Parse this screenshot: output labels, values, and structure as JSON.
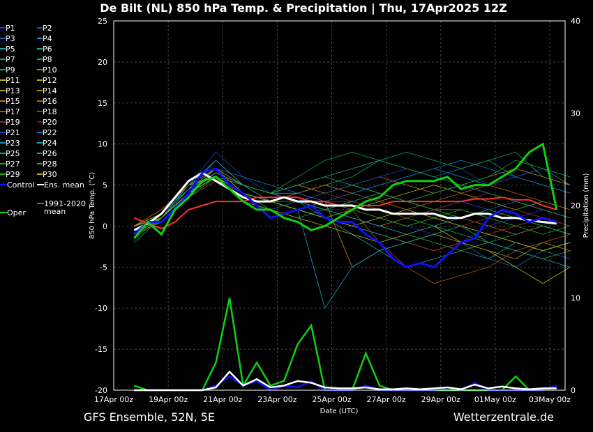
{
  "chart_data": {
    "type": "line",
    "title": "De Bilt  (NL)  850 hPa Temp. & Precipitation | Thu, 17Apr2025 12Z",
    "xlabel": "Date (UTC)",
    "ylabel": "850 hPa Temp. (°C)",
    "ylabel_right": "Precipitation (mm)",
    "ylim": [
      -20,
      25
    ],
    "ylim_right": [
      0,
      40
    ],
    "yticks": [
      25,
      20,
      15,
      10,
      5,
      0,
      -5,
      -10,
      -15,
      -20
    ],
    "yticks_right": [
      40,
      30,
      20,
      10,
      0
    ],
    "xlim_hours": [
      0,
      398
    ],
    "xticks": [
      {
        "label": "17Apr 00z",
        "h": 0
      },
      {
        "label": "19Apr 00z",
        "h": 48
      },
      {
        "label": "21Apr 00z",
        "h": 96
      },
      {
        "label": "23Apr 00z",
        "h": 144
      },
      {
        "label": "25Apr 00z",
        "h": 192
      },
      {
        "label": "27Apr 00z",
        "h": 240
      },
      {
        "label": "29Apr 00z",
        "h": 288
      },
      {
        "label": "01May 00z",
        "h": 336
      },
      {
        "label": "03May 00z",
        "h": 384
      }
    ],
    "grid": true,
    "legend_position": "left-outside",
    "main_hours_start": 18,
    "main_hours_step": 12,
    "member_hours_start": 18,
    "member_hours_step": 24,
    "members": [
      {
        "name": "P1",
        "color": "#2a2ad8",
        "values": [
          -1,
          1,
          4,
          7,
          5,
          3,
          2,
          3,
          2,
          1,
          0,
          -1,
          -2,
          0,
          1,
          2,
          1
        ]
      },
      {
        "name": "P2",
        "color": "#1848b8",
        "values": [
          -1,
          1.5,
          5,
          7,
          4,
          3,
          4,
          3,
          3,
          4,
          3,
          2,
          3,
          2,
          3,
          2,
          1
        ]
      },
      {
        "name": "P3",
        "color": "#1468b8",
        "values": [
          -0.5,
          0.5,
          4,
          6,
          3,
          2,
          3,
          1,
          0,
          -1,
          -2,
          -3,
          -2,
          -4,
          -5,
          -3,
          -4
        ]
      },
      {
        "name": "P4",
        "color": "#1494c4",
        "values": [
          0,
          1,
          5,
          8,
          5,
          4,
          4,
          5,
          4,
          5,
          6,
          7,
          6,
          5,
          6,
          7,
          5
        ]
      },
      {
        "name": "P5",
        "color": "#14a8b4",
        "values": [
          -1,
          1,
          4,
          6,
          4,
          3,
          2,
          1,
          -1,
          -3,
          -5,
          -4,
          -3,
          -4,
          -2,
          -3,
          -2
        ]
      },
      {
        "name": "P6",
        "color": "#14a888",
        "values": [
          -0.5,
          1.5,
          4.5,
          6.5,
          5,
          4,
          5,
          6,
          7,
          8,
          7,
          6,
          7,
          8,
          6,
          5,
          4
        ]
      },
      {
        "name": "P7",
        "color": "#14a868",
        "values": [
          -2,
          1,
          5,
          7,
          5,
          3,
          4,
          5,
          6,
          8,
          9,
          8,
          7,
          8,
          9,
          6,
          5
        ]
      },
      {
        "name": "P8",
        "color": "#14a848",
        "values": [
          -1,
          0.5,
          3.5,
          6,
          4,
          2,
          1,
          2,
          3,
          2,
          1,
          0,
          -1,
          -2,
          -1,
          0,
          -1
        ]
      },
      {
        "name": "P9",
        "color": "#20b428",
        "values": [
          -1.5,
          1,
          4,
          6.5,
          5,
          4,
          3,
          2,
          1,
          0,
          -1,
          -2,
          -3,
          -2,
          -3,
          -4,
          -3
        ]
      },
      {
        "name": "P10",
        "color": "#30c014",
        "values": [
          -1,
          1,
          4,
          6,
          4,
          3,
          3,
          4,
          5,
          4,
          3,
          2,
          2,
          1,
          2,
          3,
          2
        ]
      },
      {
        "name": "P11",
        "color": "#b8b814",
        "values": [
          0,
          1.5,
          5,
          6,
          3,
          2,
          1,
          0,
          -1,
          -2,
          -1,
          0,
          -2,
          -3,
          -5,
          -7,
          -5
        ]
      },
      {
        "name": "P12",
        "color": "#b8a814",
        "values": [
          -1,
          1,
          4.5,
          7,
          4,
          3,
          2,
          1,
          2,
          3,
          4,
          5,
          4,
          3,
          2,
          1,
          0
        ]
      },
      {
        "name": "P13",
        "color": "#b89414",
        "values": [
          -0.5,
          1,
          4,
          6.5,
          5,
          4,
          3,
          3,
          -5,
          -3,
          -2,
          -1,
          -2,
          -3,
          -4,
          -2,
          -3
        ]
      },
      {
        "name": "P14",
        "color": "#b88414",
        "values": [
          0,
          2,
          5,
          7,
          5,
          4,
          5,
          4,
          5,
          6,
          5,
          4,
          5,
          6,
          7,
          6,
          5
        ]
      },
      {
        "name": "P15",
        "color": "#b87414",
        "values": [
          -1,
          1,
          4,
          6,
          5,
          4,
          3,
          2,
          1,
          0,
          1,
          2,
          1,
          0,
          -1,
          0,
          -1
        ]
      },
      {
        "name": "P16",
        "color": "#b06414",
        "values": [
          -0.5,
          1,
          4,
          6,
          4,
          3,
          4,
          5,
          4,
          3,
          2,
          3,
          4,
          5,
          4,
          3,
          2
        ]
      },
      {
        "name": "P17",
        "color": "#a85414",
        "values": [
          -1,
          0.5,
          3.5,
          5.5,
          4,
          3,
          2,
          3,
          2,
          -2,
          -5,
          -7,
          -6,
          -5,
          -3,
          -2,
          -1
        ]
      },
      {
        "name": "P18",
        "color": "#a04020",
        "values": [
          0,
          1,
          4,
          6,
          4,
          3,
          2,
          1,
          0,
          -1,
          -2,
          -3,
          -2,
          -1,
          0,
          1,
          0
        ]
      },
      {
        "name": "P19",
        "color": "#902424",
        "values": [
          -1,
          1,
          4,
          6.5,
          5,
          4,
          3,
          4,
          3,
          2,
          1,
          2,
          3,
          4,
          3,
          2,
          1
        ]
      },
      {
        "name": "P20",
        "color": "#801818",
        "values": [
          -0.5,
          1,
          4,
          6,
          4,
          3,
          3,
          2,
          2,
          1,
          2,
          1,
          0,
          1,
          2,
          1,
          0
        ]
      },
      {
        "name": "P21",
        "color": "#1444c4",
        "values": [
          -1,
          1.5,
          5,
          9,
          6,
          4,
          3,
          4,
          5,
          6,
          7,
          6,
          7,
          5,
          6,
          7,
          6
        ]
      },
      {
        "name": "P22",
        "color": "#1474c4",
        "values": [
          -1,
          1,
          4,
          7,
          6,
          5,
          4,
          3,
          4,
          5,
          6,
          7,
          8,
          7,
          6,
          5,
          4
        ]
      },
      {
        "name": "P23",
        "color": "#1494c4",
        "values": [
          -0.5,
          1,
          4.5,
          8,
          5,
          4,
          3,
          2,
          1,
          0,
          -1,
          0,
          1,
          2,
          1,
          0,
          -1
        ]
      },
      {
        "name": "P24",
        "color": "#14a8b8",
        "values": [
          -1,
          1,
          4,
          6,
          4,
          3,
          2,
          -10,
          -5,
          -3,
          -2,
          -1,
          0,
          -2,
          -3,
          -4,
          -5
        ]
      },
      {
        "name": "P25",
        "color": "#14a888",
        "values": [
          0,
          1,
          4,
          6,
          4,
          3,
          2,
          1,
          0,
          -1,
          -2,
          -1,
          0,
          -1,
          -2,
          -3,
          -2
        ]
      },
      {
        "name": "P26",
        "color": "#14a874",
        "values": [
          -1,
          1,
          4,
          6.5,
          5,
          4,
          5,
          6,
          5,
          4,
          3,
          4,
          5,
          4,
          3,
          2,
          1
        ]
      },
      {
        "name": "P27",
        "color": "#14a854",
        "values": [
          -0.5,
          1,
          4,
          6,
          4,
          3,
          3,
          2,
          3,
          4,
          3,
          2,
          1,
          2,
          1,
          0,
          -1
        ]
      },
      {
        "name": "P28",
        "color": "#14a834",
        "values": [
          -1,
          1,
          4,
          6,
          5,
          4,
          6,
          8,
          9,
          8,
          7,
          6,
          5,
          6,
          8,
          7,
          6
        ]
      },
      {
        "name": "P29",
        "color": "#20b414",
        "values": [
          -1,
          1,
          4,
          6,
          4,
          3,
          2,
          1,
          2,
          1,
          0,
          1,
          2,
          1,
          0,
          -1,
          0
        ]
      },
      {
        "name": "P30",
        "color": "#b8b814",
        "values": [
          0,
          1,
          4,
          6,
          4,
          3,
          2,
          1,
          0,
          1,
          2,
          1,
          0,
          -1,
          -2,
          -3,
          -2
        ]
      }
    ],
    "main_series": [
      {
        "name": "1991-2020 mean",
        "legend": [
          "1991-2020",
          "mean"
        ],
        "color": "#ff3030",
        "width": 2,
        "values": [
          1,
          0.3,
          -0.3,
          0.5,
          2,
          2.5,
          3,
          3,
          3,
          3.5,
          3.5,
          3.5,
          3.5,
          3,
          3,
          2.5,
          2.5,
          2.5,
          2.5,
          3,
          3,
          3,
          3,
          3,
          3,
          3.3,
          3.3,
          3.5,
          3.2,
          3.2,
          2.5,
          2
        ]
      },
      {
        "name": "Ens. mean",
        "color": "#ffffff",
        "width": 3,
        "values": [
          -0.5,
          0.3,
          1.5,
          3.5,
          5.5,
          6.5,
          5.5,
          4.5,
          3.5,
          3,
          3,
          3.5,
          3,
          3,
          2.5,
          2.5,
          2.5,
          2,
          2,
          1.5,
          1.5,
          1.5,
          1.5,
          1,
          1,
          1.5,
          1.5,
          1,
          1,
          0.7,
          0.5,
          0.3
        ]
      },
      {
        "name": "Control",
        "color": "#1010ff",
        "width": 3,
        "values": [
          -1,
          0.5,
          0.5,
          2,
          4,
          6.5,
          7,
          5,
          4,
          2.5,
          1,
          1.5,
          2,
          2.5,
          1,
          0.5,
          0.5,
          -1,
          -2,
          -4,
          -5,
          -4.5,
          -5,
          -3.5,
          -2,
          -1.5,
          1,
          2,
          1.5,
          0.5,
          1,
          0.5
        ]
      },
      {
        "name": "Oper",
        "color": "#10d010",
        "width": 3,
        "values": [
          -1.5,
          0.5,
          -1,
          2,
          3.5,
          5.5,
          6,
          4.5,
          3,
          2,
          2,
          1,
          0.5,
          -0.5,
          0,
          1,
          2,
          3,
          3.5,
          5,
          5.5,
          5.5,
          5.5,
          6,
          4.5,
          5,
          5,
          6,
          7,
          9,
          10,
          2
        ]
      }
    ],
    "precipitation": [
      {
        "name": "Oper",
        "color": "#10d010",
        "values": [
          0.5,
          0,
          0,
          0,
          0,
          0,
          3,
          10,
          0.5,
          3,
          0.5,
          1,
          5,
          7,
          0,
          0,
          0,
          4,
          0.5,
          0,
          0,
          0,
          0,
          0,
          0,
          0,
          0,
          0,
          1.5,
          0,
          0,
          0.5
        ]
      },
      {
        "name": "Control",
        "color": "#1010ff",
        "values": [
          0,
          0,
          0,
          0,
          0,
          0,
          0.5,
          1.5,
          0.5,
          1,
          0,
          0.5,
          0.3,
          1,
          0,
          0,
          0,
          0.5,
          0,
          0,
          0,
          0,
          0,
          0.3,
          0,
          0.8,
          0,
          0,
          0,
          0,
          0,
          0.5
        ]
      },
      {
        "name": "Ens. mean",
        "color": "#ffffff",
        "values": [
          0,
          0,
          0,
          0,
          0,
          0,
          0.3,
          2,
          0.5,
          1.2,
          0.3,
          0.5,
          1,
          0.8,
          0.3,
          0.2,
          0.2,
          0.3,
          0.1,
          0.1,
          0.2,
          0.1,
          0.2,
          0.3,
          0.1,
          0.6,
          0.2,
          0.4,
          0.2,
          0.1,
          0.2,
          0.2
        ]
      }
    ]
  },
  "footer": {
    "left": "GFS Ensemble, 52N, 5E",
    "right": "Wetterzentrale.de"
  }
}
